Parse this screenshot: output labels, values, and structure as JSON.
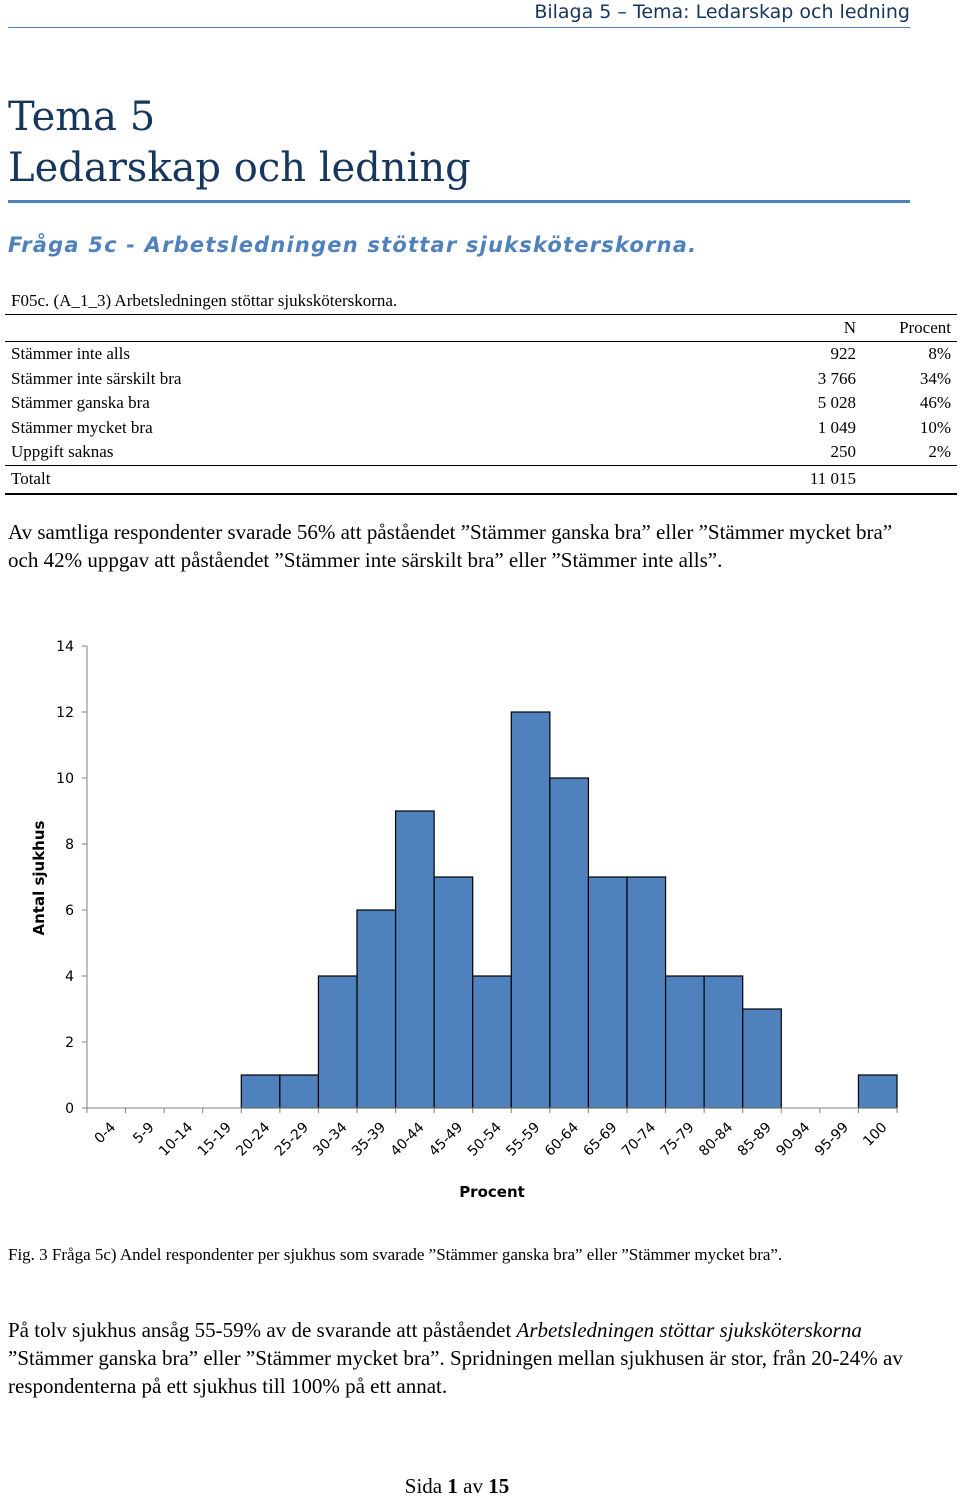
{
  "header": {
    "text": "Bilaga 5 – Tema: Ledarskap och ledning"
  },
  "title": {
    "line1": "Tema 5",
    "line2": "Ledarskap och ledning"
  },
  "question_heading": "Fråga 5c - Arbetsledningen stöttar sjuksköterskorna.",
  "table": {
    "caption": "F05c. (A_1_3) Arbetsledningen stöttar sjuksköterskorna.",
    "col_n": "N",
    "col_pct": "Procent",
    "rows": [
      {
        "label": "Stämmer inte alls",
        "n": "922",
        "pct": "8%"
      },
      {
        "label": "Stämmer inte särskilt bra",
        "n": "3 766",
        "pct": "34%"
      },
      {
        "label": "Stämmer ganska bra",
        "n": "5 028",
        "pct": "46%"
      },
      {
        "label": "Stämmer mycket bra",
        "n": "1 049",
        "pct": "10%"
      },
      {
        "label": "Uppgift saknas",
        "n": "250",
        "pct": "2%"
      }
    ],
    "total": {
      "label": "Totalt",
      "n": "11 015",
      "pct": ""
    }
  },
  "paragraph1": "Av samtliga respondenter svarade 56% att påståendet ”Stämmer ganska bra” eller ”Stämmer mycket bra” och 42% uppgav att påståendet ”Stämmer inte särskilt bra” eller ”Stämmer inte alls”.",
  "chart_data": {
    "type": "bar",
    "categories": [
      "0-4",
      "5-9",
      "10-14",
      "15-19",
      "20-24",
      "25-29",
      "30-34",
      "35-39",
      "40-44",
      "45-49",
      "50-54",
      "55-59",
      "60-64",
      "65-69",
      "70-74",
      "75-79",
      "80-84",
      "85-89",
      "90-94",
      "95-99",
      "100"
    ],
    "values": [
      0,
      0,
      0,
      0,
      1,
      1,
      4,
      6,
      9,
      7,
      4,
      12,
      10,
      7,
      7,
      4,
      4,
      3,
      0,
      0,
      1
    ],
    "xlabel": "Procent",
    "ylabel": "Antal sjukhus",
    "ylim": [
      0,
      14
    ],
    "yticks": [
      0,
      2,
      4,
      6,
      8,
      10,
      12,
      14
    ],
    "bar_color": "#4f81bd",
    "grid": false
  },
  "figure_caption": "Fig. 3 Fråga 5c) Andel respondenter per sjukhus som svarade ”Stämmer ganska bra” eller ”Stämmer mycket bra”.",
  "paragraph2": {
    "part1": "På tolv sjukhus ansåg 55-59% av de svarande att påståendet ",
    "italic": "Arbetsledningen stöttar sjuksköterskorna",
    "part2": " ”Stämmer ganska bra” eller ”Stämmer mycket bra”. Spridningen mellan sjukhusen är stor, från 20-24% av respondenterna på ett sjukhus till 100% på ett annat."
  },
  "footer": {
    "prefix": "Sida ",
    "page": "1",
    "middle": " av ",
    "total": "15"
  }
}
